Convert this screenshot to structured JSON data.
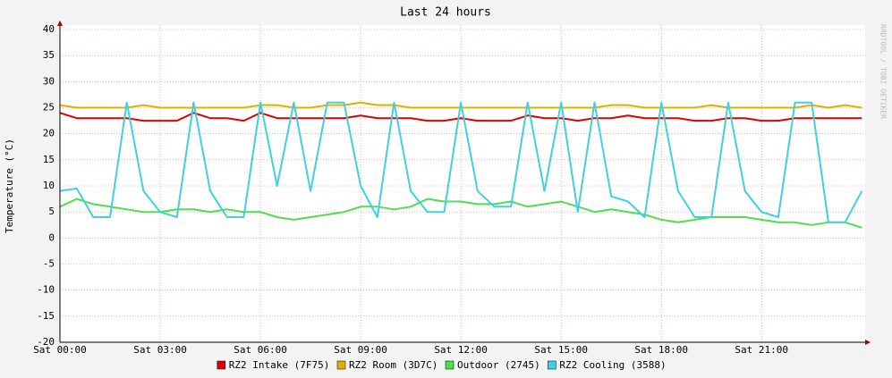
{
  "chart_data": {
    "type": "line",
    "title": "Last 24 hours",
    "y_label": "Temperature (°C)",
    "side_text": "RRDTOOL / TOBI OETIKER",
    "x": [
      0,
      0.5,
      1,
      1.5,
      2,
      2.5,
      3,
      3.5,
      4,
      4.5,
      5,
      5.5,
      6,
      6.5,
      7,
      7.5,
      8,
      8.5,
      9,
      9.5,
      10,
      10.5,
      11,
      11.5,
      12,
      12.5,
      13,
      13.5,
      14,
      14.5,
      15,
      15.5,
      16,
      16.5,
      17,
      17.5,
      18,
      18.5,
      19,
      19.5,
      20,
      20.5,
      21,
      21.5,
      22,
      22.5,
      23,
      23.5,
      24
    ],
    "xlim": [
      0,
      24.1
    ],
    "xticks": [
      {
        "value": 0,
        "label": "Sat 00:00"
      },
      {
        "value": 3,
        "label": "Sat 03:00"
      },
      {
        "value": 6,
        "label": "Sat 06:00"
      },
      {
        "value": 9,
        "label": "Sat 09:00"
      },
      {
        "value": 12,
        "label": "Sat 12:00"
      },
      {
        "value": 15,
        "label": "Sat 15:00"
      },
      {
        "value": 18,
        "label": "Sat 18:00"
      },
      {
        "value": 21,
        "label": "Sat 21:00"
      }
    ],
    "ylim": [
      -20,
      40
    ],
    "yticks": [
      -20,
      -15,
      -10,
      -5,
      0,
      5,
      10,
      15,
      20,
      25,
      30,
      35,
      40
    ],
    "grid": true,
    "series": [
      {
        "name": "RZ2 Intake (7F75)",
        "color": "#e00000",
        "values": [
          24,
          23,
          23,
          23,
          23,
          22.5,
          22.5,
          22.5,
          24,
          23,
          23,
          22.5,
          24,
          23,
          23,
          23,
          23,
          23,
          23.5,
          23,
          23,
          23,
          22.5,
          22.5,
          23,
          22.5,
          22.5,
          22.5,
          23.5,
          23,
          23,
          22.5,
          23,
          23,
          23.5,
          23,
          23,
          23,
          22.5,
          22.5,
          23,
          23,
          22.5,
          22.5,
          23,
          23,
          23,
          23,
          23
        ]
      },
      {
        "name": "RZ2 Room (3D7C)",
        "color": "#e0b000",
        "values": [
          25.5,
          25,
          25,
          25,
          25,
          25.5,
          25,
          25,
          25,
          25,
          25,
          25,
          25.5,
          25.5,
          25,
          25,
          25.5,
          25.5,
          26,
          25.5,
          25.5,
          25,
          25,
          25,
          25,
          25,
          25,
          25,
          25,
          25,
          25,
          25,
          25,
          25.5,
          25.5,
          25,
          25,
          25,
          25,
          25.5,
          25,
          25,
          25,
          25,
          25,
          25.5,
          25,
          25.5,
          25
        ]
      },
      {
        "name": "Outdoor (2745)",
        "color": "#50dd50",
        "values": [
          6,
          7.5,
          6.5,
          6,
          5.5,
          5,
          5,
          5.5,
          5.5,
          5,
          5.5,
          5,
          5,
          4,
          3.5,
          4,
          4.5,
          5,
          6,
          6,
          5.5,
          6,
          7.5,
          7,
          7,
          6.5,
          6.5,
          7,
          6,
          6.5,
          7,
          6,
          5,
          5.5,
          5,
          4.5,
          3.5,
          3,
          3.5,
          4,
          4,
          4,
          3.5,
          3,
          3,
          2.5,
          3,
          3,
          2
        ]
      },
      {
        "name": "RZ2 Cooling (3588)",
        "color": "#40d0e0",
        "values": [
          9,
          9.5,
          4,
          4,
          26,
          9,
          5,
          4,
          26,
          9,
          4,
          4,
          26,
          10,
          26,
          9,
          26,
          26,
          10,
          4,
          26,
          9,
          5,
          5,
          26,
          9,
          6,
          6,
          26,
          9,
          26,
          5,
          26,
          8,
          7,
          4,
          26,
          9,
          4,
          4,
          26,
          9,
          5,
          4,
          26,
          26,
          3,
          3,
          9
        ]
      }
    ],
    "legend": "bottom"
  }
}
